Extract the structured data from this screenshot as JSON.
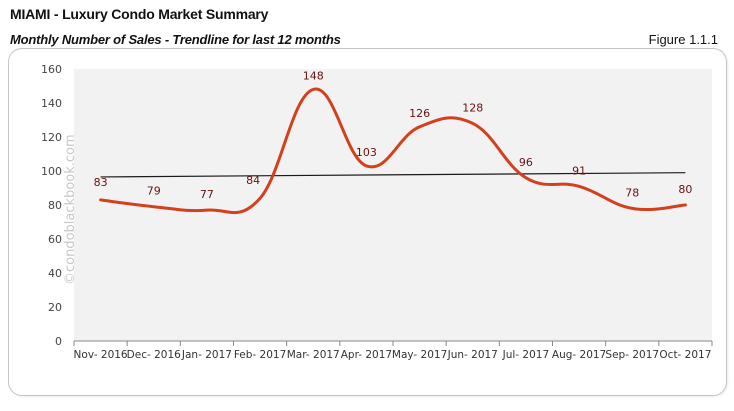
{
  "header": {
    "title_city": "MIAMI",
    "title_sep": " - ",
    "title_rest": "Luxury Condo Market Summary",
    "subtitle": "Monthly Number of Sales - Trendline for last 12 months",
    "figure_label": "Figure 1.1.1"
  },
  "watermark": "©condoblackbook.com",
  "colors": {
    "series": "#d2401c",
    "trendline": "#1a1a1a",
    "plot_bg": "#f2f2f2",
    "data_label": "#6b1010"
  },
  "chart_data": {
    "type": "line",
    "title": "Monthly Number of Sales - Trendline for last 12 months",
    "xlabel": "",
    "ylabel": "",
    "categories": [
      "Nov- 2016",
      "Dec- 2016",
      "Jan- 2017",
      "Feb- 2017",
      "Mar- 2017",
      "Apr- 2017",
      "May- 2017",
      "Jun- 2017",
      "Jul- 2017",
      "Aug- 2017",
      "Sep- 2017",
      "Oct- 2017"
    ],
    "series": [
      {
        "name": "Monthly Number of Sales",
        "values": [
          83,
          79,
          77,
          84,
          148,
          103,
          126,
          128,
          96,
          91,
          78,
          80
        ],
        "smoothed": true,
        "data_labels": true
      },
      {
        "name": "Linear Trendline",
        "values": [
          96.5,
          99
        ],
        "type": "trendline"
      }
    ],
    "ylim": [
      0,
      160
    ],
    "yticks": [
      0,
      20,
      40,
      60,
      80,
      100,
      120,
      140,
      160
    ],
    "grid": false,
    "legend": "none"
  }
}
